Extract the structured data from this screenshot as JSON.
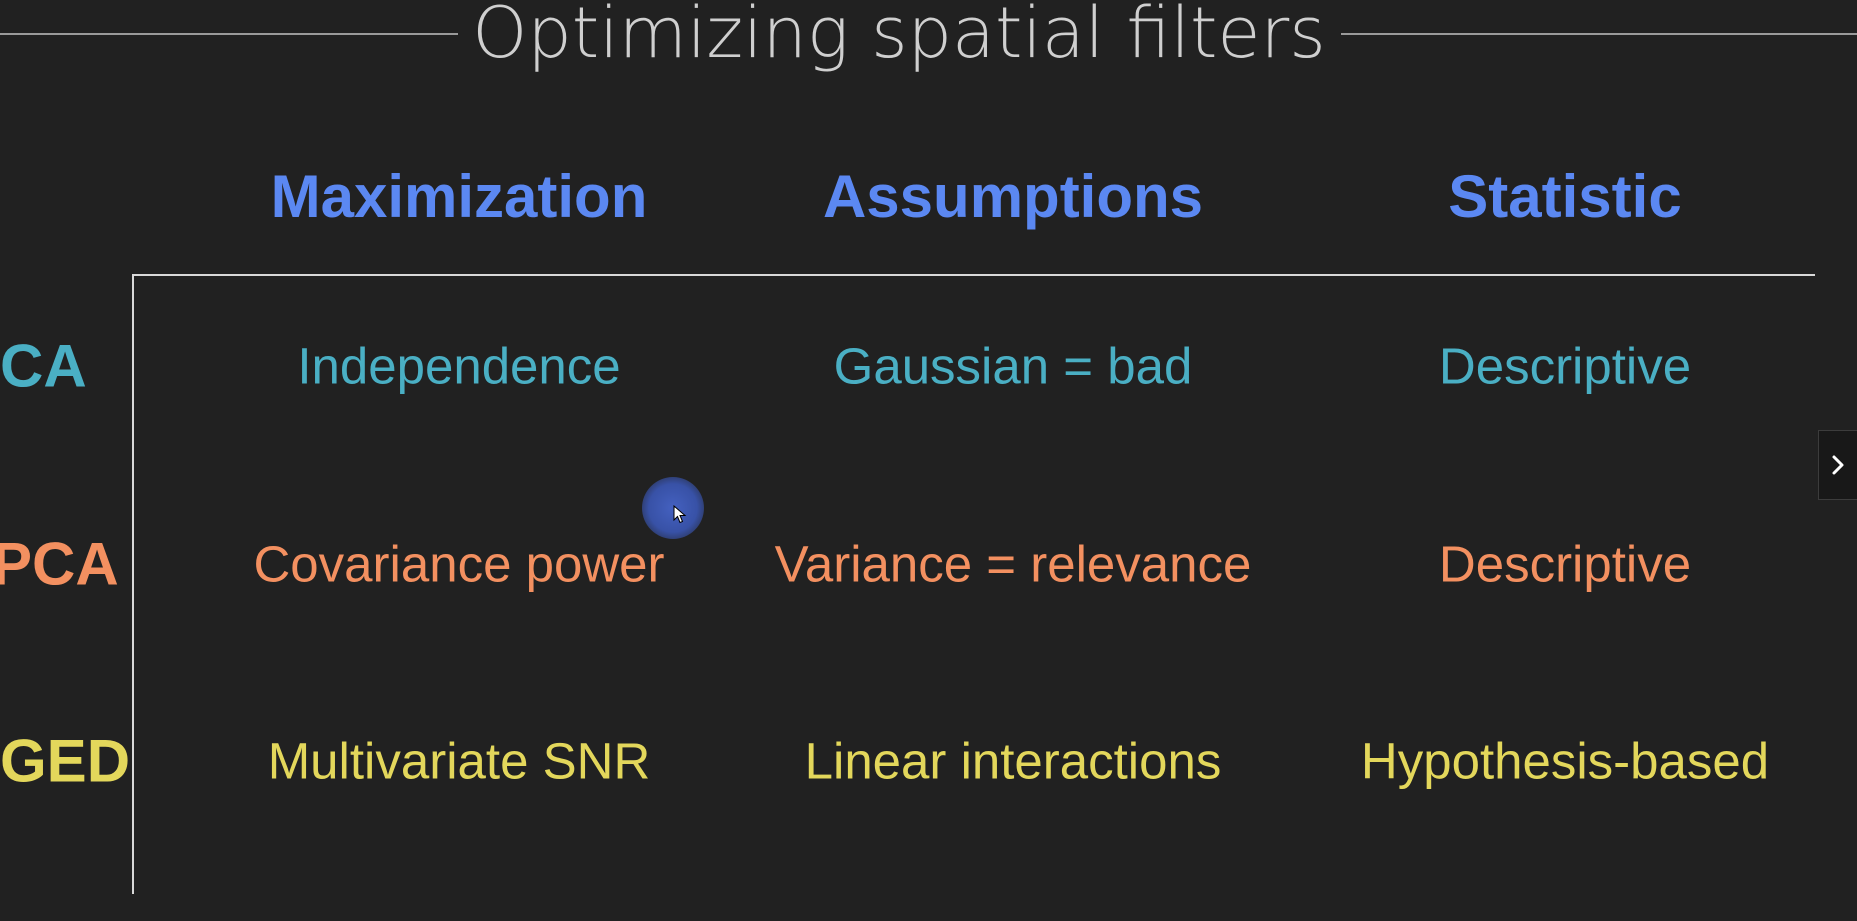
{
  "slide": {
    "title": "Optimizing spatial filters"
  },
  "table": {
    "headers": [
      "Maximization",
      "Assumptions",
      "Statistic"
    ],
    "rows": [
      {
        "label": "CA",
        "cells": [
          "Independence",
          "Gaussian = bad",
          "Descriptive"
        ],
        "color": "#4aafc4"
      },
      {
        "label": "PCA",
        "cells": [
          "Covariance power",
          "Variance = relevance",
          "Descriptive"
        ],
        "color": "#f39060"
      },
      {
        "label": "GED",
        "cells": [
          "Multivariate SNR",
          "Linear interactions",
          "Hypothesis-based"
        ],
        "color": "#e3d75b"
      }
    ]
  },
  "colors": {
    "header": "#5b88f2",
    "background": "#212121",
    "title": "#cfcfcf"
  },
  "controls": {
    "next_icon": "chevron-right-icon"
  }
}
